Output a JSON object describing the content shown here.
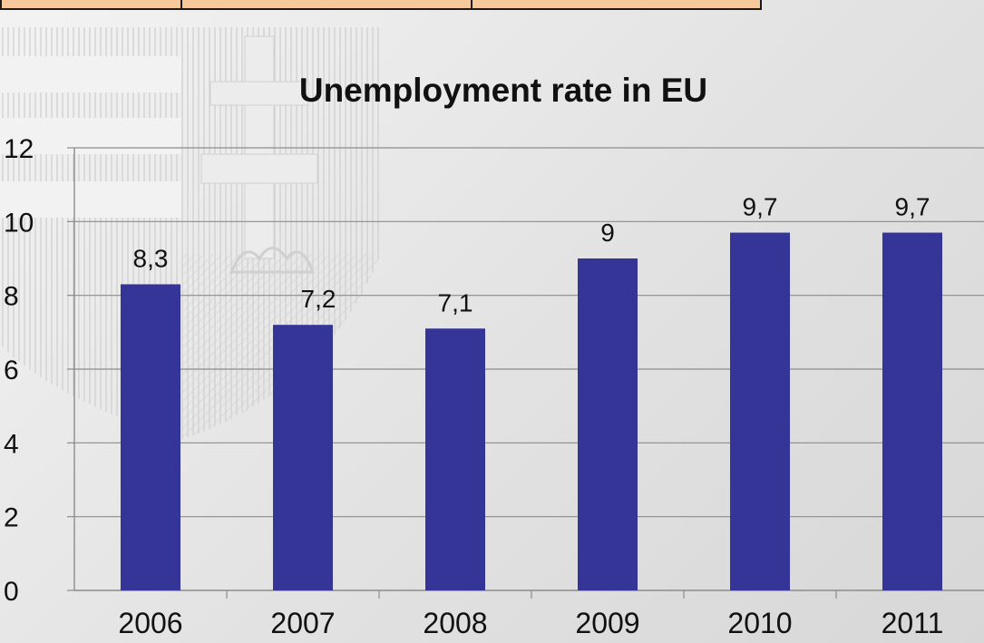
{
  "colors": {
    "bar": "#343597",
    "grid": "#8c8c8c",
    "axis": "#8c8c8c"
  },
  "chart_data": {
    "type": "bar",
    "title": "Unemployment  rate in EU",
    "xlabel": "",
    "ylabel": "",
    "categories": [
      "2006",
      "2007",
      "2008",
      "2009",
      "2010",
      "2011"
    ],
    "values": [
      8.3,
      7.2,
      7.1,
      9,
      9.7,
      9.7
    ],
    "data_labels": [
      "8,3",
      "7,2",
      "7,1",
      "9",
      "9,7",
      "9,7"
    ],
    "ylim": [
      0,
      12
    ],
    "yticks": [
      0,
      2,
      4,
      6,
      8,
      10,
      12
    ],
    "grid": true,
    "legend": "none"
  }
}
